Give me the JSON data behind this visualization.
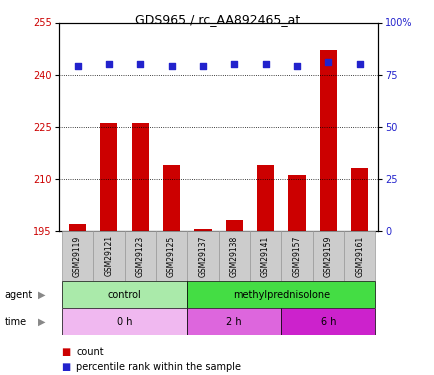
{
  "title": "GDS965 / rc_AA892465_at",
  "samples": [
    "GSM29119",
    "GSM29121",
    "GSM29123",
    "GSM29125",
    "GSM29137",
    "GSM29138",
    "GSM29141",
    "GSM29157",
    "GSM29159",
    "GSM29161"
  ],
  "bar_values": [
    197,
    226,
    226,
    214,
    195.5,
    198,
    214,
    211,
    247,
    213
  ],
  "percentile_values": [
    79,
    80,
    80,
    79,
    79,
    80,
    80,
    79,
    81,
    80
  ],
  "ylim_left": [
    195,
    255
  ],
  "ylim_right": [
    0,
    100
  ],
  "yticks_left": [
    195,
    210,
    225,
    240,
    255
  ],
  "yticks_right": [
    0,
    25,
    50,
    75,
    100
  ],
  "bar_color": "#cc0000",
  "dot_color": "#2222cc",
  "agent_groups": [
    {
      "label": "control",
      "start": 0,
      "end": 4,
      "color": "#aaeaaa"
    },
    {
      "label": "methylprednisolone",
      "start": 4,
      "end": 10,
      "color": "#44dd44"
    }
  ],
  "time_colors": [
    "#f0b8f0",
    "#dd66dd",
    "#cc22cc"
  ],
  "time_groups": [
    {
      "label": "0 h",
      "start": 0,
      "end": 4
    },
    {
      "label": "2 h",
      "start": 4,
      "end": 7
    },
    {
      "label": "6 h",
      "start": 7,
      "end": 10
    }
  ],
  "legend_count_color": "#cc0000",
  "legend_pct_color": "#2222cc",
  "ytick_left_color": "#cc0000",
  "ytick_right_color": "#2222cc",
  "sample_box_color": "#cccccc",
  "sample_box_edge": "#999999"
}
